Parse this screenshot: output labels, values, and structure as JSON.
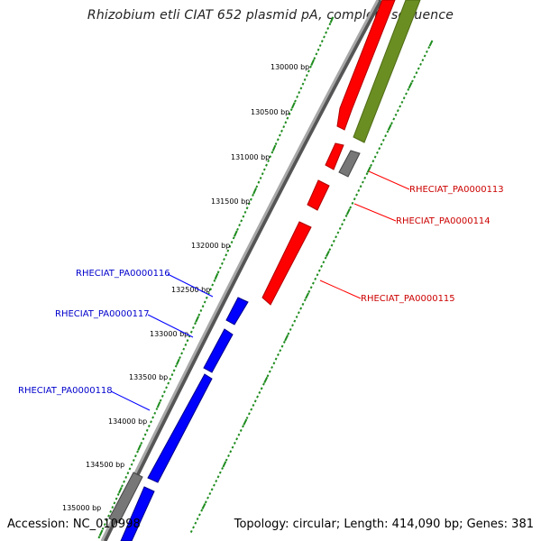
{
  "title": "Rhizobium etli CIAT 652 plasmid pA, complete sequence",
  "footer": {
    "accession": "Accession: NC_010998",
    "summary": "Topology: circular; Length: 414,090 bp; Genes: 381"
  },
  "colors": {
    "forward_genes": "#ff0000",
    "reverse_genes": "#0000ff",
    "other_genes": "#7a7a7a",
    "rrna_track": "#6b8e23",
    "ticks": "#1e8c1e",
    "backbone": "#888888"
  },
  "ticks": [
    {
      "label": "130000 bp"
    },
    {
      "label": "130500 bp"
    },
    {
      "label": "131000 bp"
    },
    {
      "label": "131500 bp"
    },
    {
      "label": "132000 bp"
    },
    {
      "label": "132500 bp"
    },
    {
      "label": "133000 bp"
    },
    {
      "label": "133500 bp"
    },
    {
      "label": "134000 bp"
    },
    {
      "label": "134500 bp"
    },
    {
      "label": "135000 bp"
    }
  ],
  "gene_labels": [
    {
      "name": "RHECIAT_PA0000113",
      "strand": "forward"
    },
    {
      "name": "RHECIAT_PA0000114",
      "strand": "forward"
    },
    {
      "name": "RHECIAT_PA0000115",
      "strand": "forward"
    },
    {
      "name": "RHECIAT_PA0000116",
      "strand": "reverse"
    },
    {
      "name": "RHECIAT_PA0000117",
      "strand": "reverse"
    },
    {
      "name": "RHECIAT_PA0000118",
      "strand": "reverse"
    }
  ]
}
